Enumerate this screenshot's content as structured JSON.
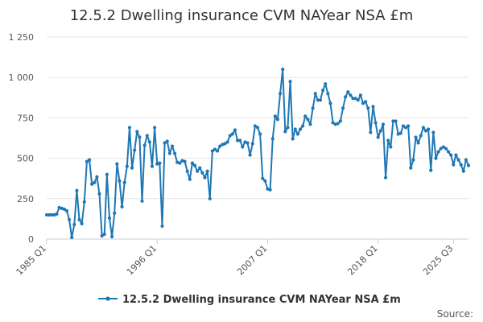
{
  "chart_data": {
    "type": "line",
    "title": "12.5.2 Dwelling insurance CVM NAYear NSA £m",
    "xlabel": "",
    "ylabel": "",
    "ylim": [
      0,
      1250
    ],
    "yticks": [
      0,
      250,
      500,
      750,
      1000,
      1250
    ],
    "ytick_labels": [
      "0",
      "250",
      "500",
      "750",
      "1 000",
      "1 250"
    ],
    "xticks": [
      {
        "index": 0,
        "label": "1985 Q1"
      },
      {
        "index": 44,
        "label": "1996 Q1"
      },
      {
        "index": 88,
        "label": "2007 Q1"
      },
      {
        "index": 132,
        "label": "2018 Q1"
      },
      {
        "index": 162,
        "label": "2025 Q3"
      }
    ],
    "grid": true,
    "legend": "bottom",
    "color": "#1f77b4",
    "series": [
      {
        "name": "12.5.2 Dwelling insurance CVM NAYear NSA £m",
        "values": [
          150,
          150,
          150,
          150,
          155,
          195,
          190,
          185,
          175,
          120,
          10,
          90,
          300,
          120,
          95,
          230,
          480,
          490,
          340,
          350,
          385,
          280,
          20,
          30,
          400,
          130,
          15,
          160,
          465,
          360,
          200,
          350,
          450,
          690,
          440,
          550,
          665,
          630,
          235,
          580,
          640,
          600,
          450,
          690,
          465,
          470,
          80,
          595,
          605,
          530,
          575,
          530,
          475,
          470,
          485,
          480,
          420,
          370,
          470,
          455,
          420,
          440,
          410,
          380,
          420,
          250,
          545,
          555,
          545,
          575,
          585,
          590,
          600,
          640,
          650,
          675,
          610,
          610,
          570,
          600,
          595,
          520,
          590,
          700,
          690,
          650,
          375,
          360,
          310,
          305,
          620,
          760,
          740,
          900,
          1050,
          665,
          690,
          975,
          620,
          680,
          650,
          680,
          700,
          760,
          740,
          710,
          810,
          900,
          860,
          860,
          920,
          960,
          900,
          840,
          720,
          710,
          715,
          730,
          810,
          880,
          910,
          890,
          870,
          870,
          860,
          890,
          840,
          850,
          810,
          660,
          820,
          720,
          630,
          670,
          710,
          380,
          610,
          570,
          730,
          730,
          650,
          655,
          700,
          690,
          700,
          440,
          490,
          630,
          595,
          640,
          690,
          670,
          680,
          425,
          660,
          500,
          540,
          560,
          570,
          560,
          540,
          520,
          460,
          520,
          490,
          460,
          420,
          490,
          455
        ]
      }
    ]
  },
  "legend_label": "12.5.2 Dwelling insurance CVM NAYear NSA £m",
  "source_label": "Source:"
}
